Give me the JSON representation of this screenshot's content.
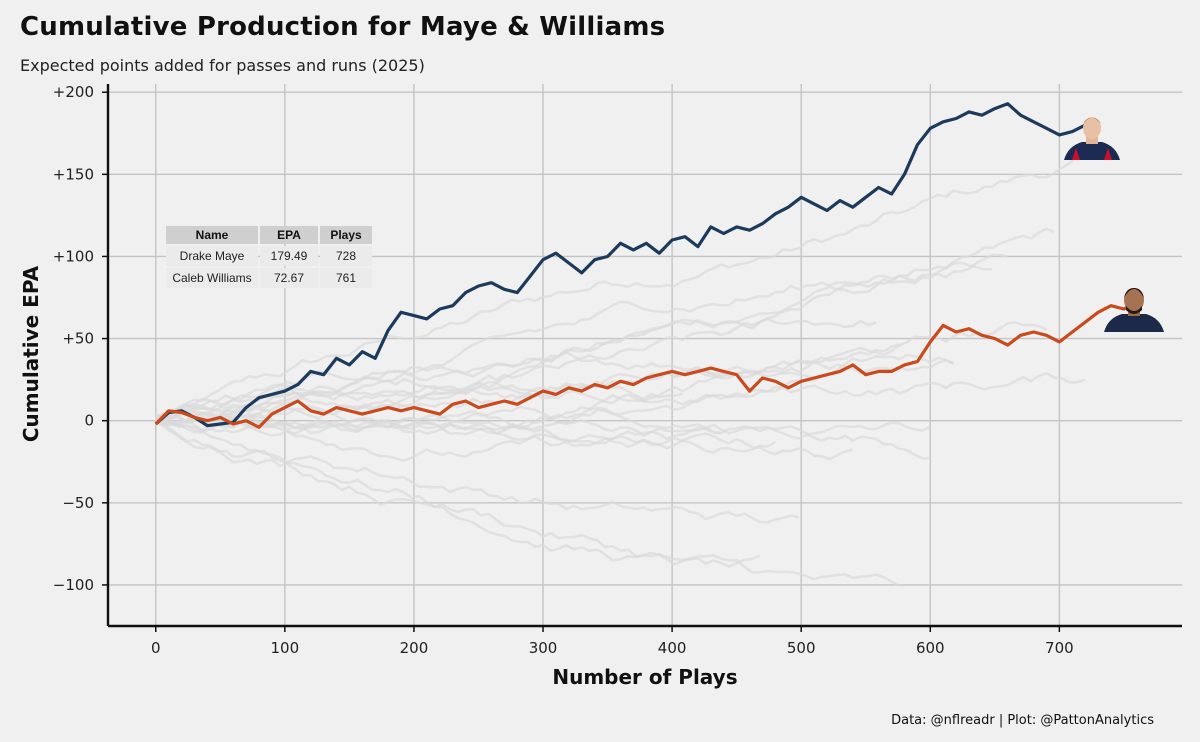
{
  "title": "Cumulative Production for Maye & Williams",
  "subtitle": "Expected points added for passes and runs (2025)",
  "caption": "Data: @nflreadr | Plot: @PattonAnalytics",
  "table": {
    "headers": [
      "Name",
      "EPA",
      "Plays"
    ],
    "rows": [
      [
        "Drake Maye",
        "179.49",
        "728"
      ],
      [
        "Caleb Williams",
        "72.67",
        "761"
      ]
    ]
  },
  "chart_data": {
    "type": "line",
    "title": "Cumulative Production for Maye & Williams",
    "xlabel": "Number of Plays",
    "ylabel": "Cumulative EPA",
    "xlim": [
      -37,
      795
    ],
    "ylim": [
      -125,
      205
    ],
    "x_ticks": [
      0,
      100,
      200,
      300,
      400,
      500,
      600,
      700
    ],
    "x_tick_labels": [
      "0",
      "100",
      "200",
      "300",
      "400",
      "500",
      "600",
      "700"
    ],
    "y_ticks": [
      -100,
      -50,
      0,
      50,
      100,
      150,
      200
    ],
    "y_tick_labels": [
      "−100",
      "−50",
      "0",
      "+50",
      "+100",
      "+150",
      "+200"
    ],
    "grid": true,
    "series": [
      {
        "name": "Drake Maye",
        "color": "#1b3a5c",
        "x": [
          0,
          10,
          20,
          30,
          40,
          50,
          60,
          70,
          80,
          90,
          100,
          110,
          120,
          130,
          140,
          150,
          160,
          170,
          180,
          190,
          200,
          210,
          220,
          230,
          240,
          250,
          260,
          270,
          280,
          290,
          300,
          310,
          320,
          330,
          340,
          350,
          360,
          370,
          380,
          390,
          400,
          410,
          420,
          430,
          440,
          450,
          460,
          470,
          480,
          490,
          500,
          510,
          520,
          530,
          540,
          550,
          560,
          570,
          580,
          590,
          600,
          610,
          620,
          630,
          640,
          650,
          660,
          670,
          680,
          690,
          700,
          710,
          720,
          728
        ],
        "y": [
          -2,
          5,
          6,
          2,
          -3,
          -2,
          -1,
          8,
          14,
          16,
          18,
          22,
          30,
          28,
          38,
          34,
          42,
          38,
          55,
          66,
          64,
          62,
          68,
          70,
          78,
          82,
          84,
          80,
          78,
          88,
          98,
          102,
          96,
          90,
          98,
          100,
          108,
          104,
          108,
          102,
          110,
          112,
          106,
          118,
          114,
          118,
          116,
          120,
          126,
          130,
          136,
          132,
          128,
          134,
          130,
          136,
          142,
          138,
          150,
          168,
          178,
          182,
          184,
          188,
          186,
          190,
          193,
          186,
          182,
          178,
          174,
          176,
          180,
          179.49
        ]
      },
      {
        "name": "Caleb Williams",
        "color": "#c94a1c",
        "x": [
          0,
          10,
          20,
          30,
          40,
          50,
          60,
          70,
          80,
          90,
          100,
          110,
          120,
          130,
          140,
          150,
          160,
          170,
          180,
          190,
          200,
          210,
          220,
          230,
          240,
          250,
          260,
          270,
          280,
          290,
          300,
          310,
          320,
          330,
          340,
          350,
          360,
          370,
          380,
          390,
          400,
          410,
          420,
          430,
          440,
          450,
          460,
          470,
          480,
          490,
          500,
          510,
          520,
          530,
          540,
          550,
          560,
          570,
          580,
          590,
          600,
          610,
          620,
          630,
          640,
          650,
          660,
          670,
          680,
          690,
          700,
          710,
          720,
          730,
          740,
          750,
          761
        ],
        "y": [
          -2,
          6,
          5,
          2,
          0,
          2,
          -2,
          0,
          -4,
          4,
          8,
          12,
          6,
          4,
          8,
          6,
          4,
          6,
          8,
          6,
          8,
          6,
          4,
          10,
          12,
          8,
          10,
          12,
          10,
          14,
          18,
          16,
          20,
          18,
          22,
          20,
          24,
          22,
          26,
          28,
          30,
          28,
          30,
          32,
          30,
          28,
          18,
          26,
          24,
          20,
          24,
          26,
          28,
          30,
          34,
          28,
          30,
          30,
          34,
          36,
          48,
          58,
          54,
          56,
          52,
          50,
          46,
          52,
          54,
          52,
          48,
          54,
          60,
          66,
          70,
          68,
          72.67
        ]
      }
    ]
  }
}
